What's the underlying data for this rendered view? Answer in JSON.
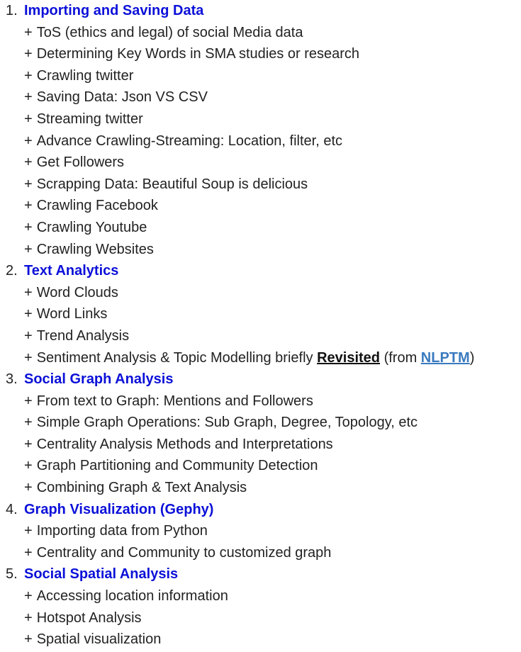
{
  "sections": [
    {
      "number": "1.",
      "title": "Importing and Saving Data",
      "items": [
        "ToS (ethics and legal) of social Media data",
        "Determining Key Words in SMA studies or research",
        "Crawling twitter",
        "Saving Data: Json VS CSV",
        "Streaming twitter",
        "Advance Crawling-Streaming: Location, filter, etc",
        "Get Followers",
        "Scrapping Data: Beautiful Soup is delicious",
        "Crawling Facebook",
        "Crawling Youtube",
        "Crawling Websites"
      ]
    },
    {
      "number": "2.",
      "title": "Text Analytics",
      "items": [
        "Word Clouds",
        "Word Links",
        "Trend Analysis"
      ],
      "special_item": {
        "text_before": "Sentiment Analysis & Topic Modelling briefly ",
        "revisited": "Revisited",
        "text_middle": " (from ",
        "link": "NLPTM",
        "text_after": ")"
      }
    },
    {
      "number": "3.",
      "title": "Social Graph Analysis",
      "items": [
        "From text to Graph: Mentions and Followers",
        "Simple Graph Operations: Sub Graph, Degree, Topology, etc",
        "Centrality Analysis Methods and Interpretations",
        "Graph Partitioning and Community Detection",
        "Combining Graph & Text Analysis"
      ]
    },
    {
      "number": "4.",
      "title": "Graph Visualization (Gephy)",
      "items": [
        "Importing data from Python",
        "Centrality and Community to customized graph"
      ]
    },
    {
      "number": "5.",
      "title": "Social Spatial Analysis",
      "items": [
        "Accessing location information",
        "Hotspot Analysis",
        "Spatial visualization"
      ]
    }
  ],
  "bullet": "+",
  "colors": {
    "section_title": "#0b10d8",
    "link": "#3a7abf",
    "text": "#222222"
  }
}
